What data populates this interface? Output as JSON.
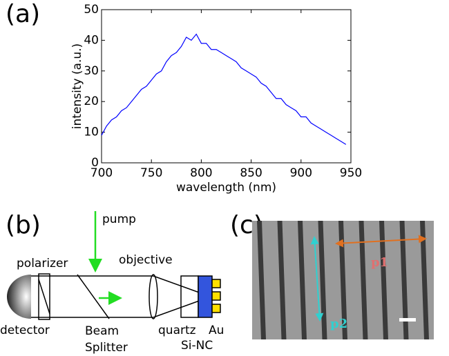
{
  "panels": {
    "a": "(a)",
    "b": "(b)",
    "c": "(c)"
  },
  "chart_data": {
    "type": "line",
    "color": "#0000ff",
    "xlabel": "wavelength (nm)",
    "ylabel": "intensity (a.u.)",
    "x": [
      700,
      705,
      710,
      715,
      720,
      725,
      730,
      735,
      740,
      745,
      750,
      755,
      760,
      765,
      770,
      775,
      780,
      785,
      790,
      795,
      800,
      805,
      810,
      815,
      820,
      825,
      830,
      835,
      840,
      845,
      850,
      855,
      860,
      865,
      870,
      875,
      880,
      885,
      890,
      895,
      900,
      905,
      910,
      915,
      920,
      925,
      930,
      935,
      940,
      945
    ],
    "values": [
      9,
      12,
      14,
      15,
      17,
      18,
      20,
      22,
      24,
      25,
      27,
      29,
      30,
      33,
      35,
      36,
      38,
      41,
      40,
      42,
      39,
      39,
      37,
      37,
      36,
      35,
      34,
      33,
      31,
      30,
      29,
      28,
      26,
      25,
      23,
      21,
      21,
      19,
      18,
      17,
      15,
      15,
      13,
      12,
      11,
      10,
      9,
      8,
      7,
      6
    ],
    "xlim": [
      700,
      950
    ],
    "xticks": [
      700,
      750,
      800,
      850,
      900,
      950
    ],
    "ylim": [
      0,
      50
    ],
    "yticks": [
      0,
      10,
      20,
      30,
      40,
      50
    ]
  },
  "diagram": {
    "pump": "pump",
    "polarizer": "polarizer",
    "objective": "objective",
    "detector": "detector",
    "beam_splitter": [
      "Beam",
      "Splitter"
    ],
    "quartz": "quartz",
    "au": "Au",
    "si_nc": "Si-NC"
  },
  "image": {
    "p1": "p1",
    "p2": "p2"
  }
}
